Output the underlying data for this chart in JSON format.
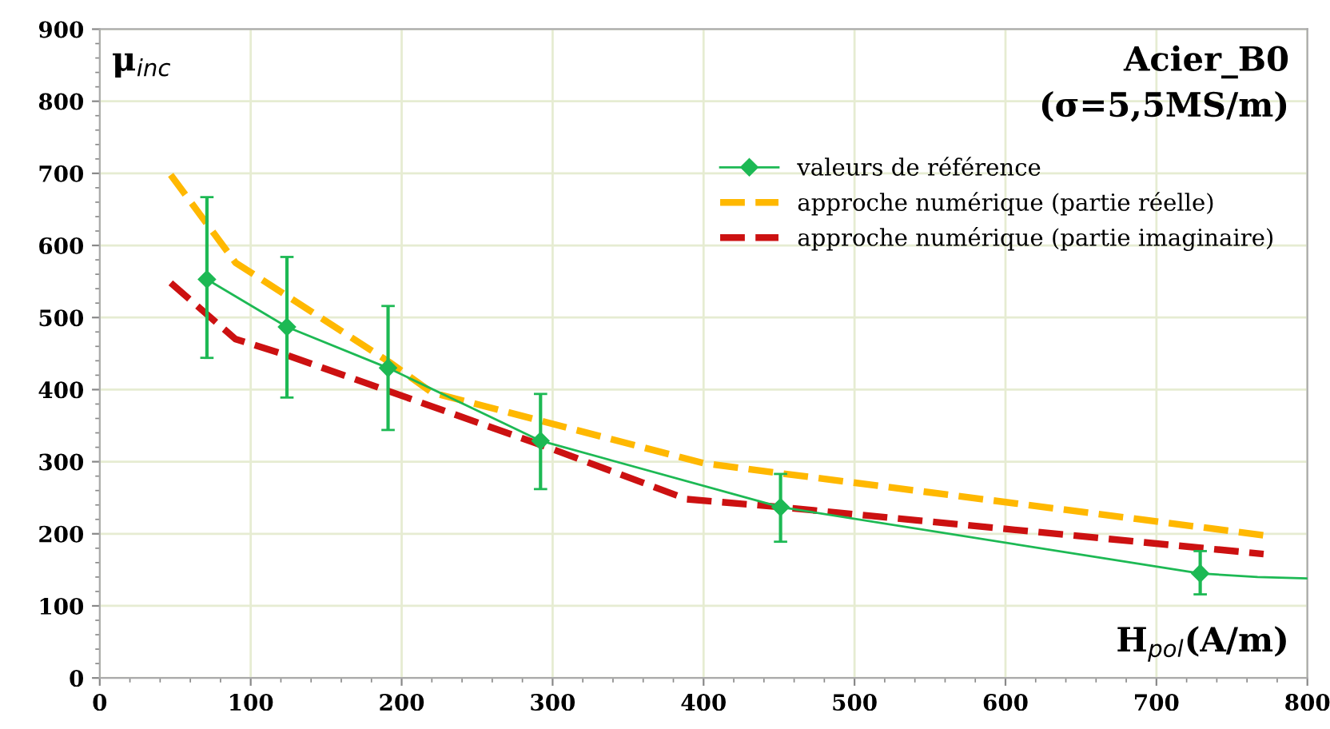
{
  "chart_data": {
    "type": "line",
    "title": "Acier_B0\n(σ=5,5MS/m)",
    "xlabel": "H$_{pol}$(A/m)",
    "ylabel": "μ$_{inc}$",
    "series": [
      {
        "name": "valeurs de référence",
        "color": "#1db954",
        "x": [
          71,
          124,
          191,
          292,
          451,
          729
        ],
        "values": [
          553,
          487,
          430,
          329,
          237,
          145
        ],
        "errors": [
          [
            444,
            667
          ],
          [
            389,
            584
          ],
          [
            344,
            516
          ],
          [
            262,
            394
          ],
          [
            189,
            283
          ],
          [
            116,
            176
          ]
        ],
        "marker": "diamond",
        "line_style": "solid"
      },
      {
        "color": "#1db954",
        "x": [
          729,
          767,
          800
        ],
        "values": [
          145,
          140,
          138
        ],
        "marker": "none",
        "line_style": "solid"
      },
      {
        "name": "approche numérique (partie réelle)",
        "color": "#ffb800",
        "x": [
          47,
          90,
          192,
          220,
          400,
          451,
          771
        ],
        "values": [
          698,
          576,
          438,
          396,
          298,
          284,
          198
        ],
        "marker": "none",
        "line_style": "dashed"
      },
      {
        "name": "approche numérique (partie imaginaire)",
        "color": "#cc1111",
        "x": [
          47,
          90,
          125,
          294,
          389,
          451,
          771
        ],
        "values": [
          548,
          470,
          447,
          322,
          248,
          237,
          172
        ],
        "marker": "none",
        "line_style": "dashed"
      }
    ],
    "xlim": [
      0,
      800
    ],
    "xticks": [
      0,
      100,
      200,
      300,
      400,
      500,
      600,
      700,
      800
    ],
    "ylim": [
      0,
      900
    ],
    "yticks": [
      0,
      100,
      200,
      300,
      400,
      500,
      600,
      700,
      800,
      900
    ],
    "grid": true,
    "legend": "right"
  }
}
